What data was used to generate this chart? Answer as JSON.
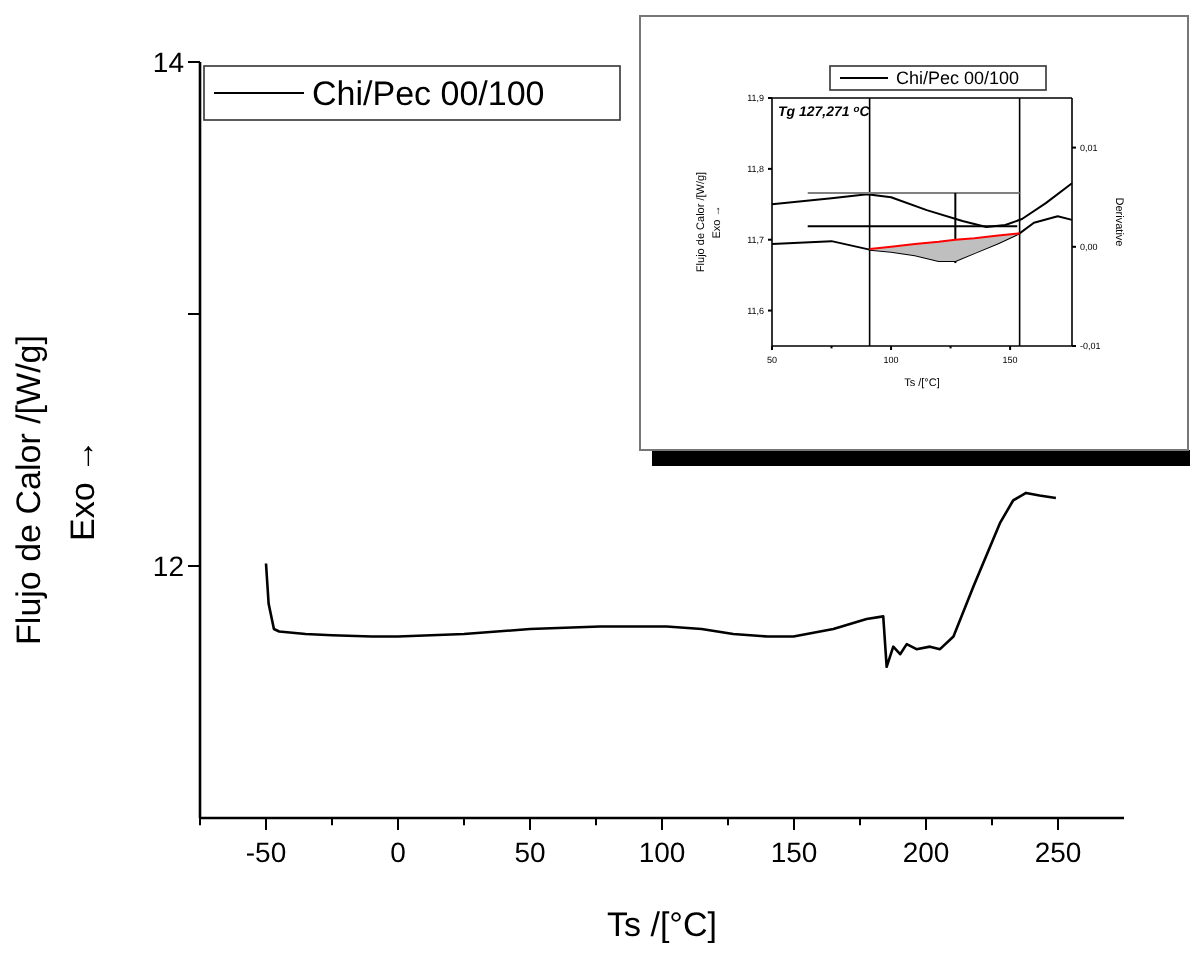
{
  "chart_data": [
    {
      "type": "line",
      "xlabel": "Ts /[°C]",
      "ylabel": "Flujo de Calor /[W/g]\nExo →",
      "xlim": [
        -75,
        275
      ],
      "ylim": [
        11,
        14
      ],
      "xticks": [
        {
          "value": -75,
          "label": null
        },
        -50,
        {
          "value": -25,
          "label": null
        },
        0,
        {
          "value": 25,
          "label": null
        },
        50,
        {
          "value": 75,
          "label": null
        },
        100,
        {
          "value": 125,
          "label": null
        },
        150,
        {
          "value": 175,
          "label": null
        },
        200,
        {
          "value": 225,
          "label": null
        },
        250
      ],
      "yticks": [
        12,
        {
          "value": 13,
          "label": null
        },
        14
      ],
      "grid": false,
      "legend": "top left",
      "marker": "none",
      "series": [
        {
          "name": "Chi/Pec 00/100",
          "color": "#000000",
          "x": [
            -50,
            -49,
            -47,
            -45,
            -35,
            -25,
            -10,
            0,
            25,
            50,
            76.5,
            90,
            101.8,
            115,
            127,
            140,
            149.8,
            164.9,
            177.5,
            183.8,
            185.1,
            187.6,
            190.2,
            192.7,
            196.4,
            201.5,
            205.3,
            210.4,
            218,
            228,
            233,
            237.9,
            243,
            249.2
          ],
          "values": [
            12.01,
            11.85,
            11.75,
            11.74,
            11.73,
            11.725,
            11.72,
            11.72,
            11.73,
            11.75,
            11.76,
            11.76,
            11.76,
            11.75,
            11.73,
            11.72,
            11.72,
            11.75,
            11.79,
            11.8,
            11.6,
            11.68,
            11.65,
            11.69,
            11.67,
            11.68,
            11.67,
            11.72,
            11.92,
            12.17,
            12.26,
            12.29,
            12.28,
            12.27
          ]
        }
      ]
    },
    {
      "type": "line",
      "xlabel": "Ts /[°C]",
      "ylabel": "Flujo de Calor /[W/g]\nExo →",
      "y2label": "Derivative",
      "xlim": [
        50,
        176
      ],
      "ylim": [
        11.55,
        11.9
      ],
      "y2lim": [
        -0.01,
        0.015
      ],
      "xticks": [
        50,
        {
          "value": 75,
          "label": null
        },
        100,
        {
          "value": 125,
          "label": null
        },
        150
      ],
      "yticks": [
        {
          "value": 11.6,
          "label": "11,6"
        },
        {
          "value": 11.7,
          "label": "11,7"
        },
        {
          "value": 11.8,
          "label": "11,8"
        },
        {
          "value": 11.9,
          "label": "11,9"
        }
      ],
      "y2ticks": [
        {
          "value": -0.01,
          "label": "-0,01"
        },
        {
          "value": 0,
          "label": "0,00"
        },
        {
          "value": 0.01,
          "label": "0,01"
        }
      ],
      "grid": false,
      "legend": "top",
      "marker": "none",
      "annotations": [
        "Tg 127,271 $^{o}$C"
      ],
      "ref_lines": [
        {
          "axis": "x",
          "value": 91
        },
        {
          "axis": "x",
          "value": 154
        }
      ],
      "series": [
        {
          "name": "Chi/Pec 00/100",
          "color": "#000000",
          "x": [
            50,
            75,
            91,
            100,
            110,
            120,
            127,
            135,
            145,
            154,
            160,
            170,
            176
          ],
          "values": [
            11.694,
            11.698,
            11.686,
            11.683,
            11.678,
            11.67,
            11.67,
            11.681,
            11.695,
            11.709,
            11.724,
            11.733,
            11.728
          ]
        },
        {
          "color": "#000000",
          "axis": "y2",
          "x": [
            50,
            75,
            90,
            100,
            115,
            130,
            140,
            148,
            155,
            165,
            176
          ],
          "values": [
            0.0043,
            0.0049,
            0.0053,
            0.005,
            0.0037,
            0.0026,
            0.002,
            0.0022,
            0.0028,
            0.0044,
            0.0064
          ]
        },
        {
          "color": "#808080",
          "x": [
            65,
            154
          ],
          "values": [
            11.766,
            11.766
          ]
        },
        {
          "color": "#000000",
          "x": [
            65,
            153
          ],
          "values": [
            11.719,
            11.719
          ]
        },
        {
          "color": "#000000",
          "x": [
            127,
            127
          ],
          "values": [
            11.766,
            11.667
          ]
        },
        {
          "color": "#ff0000",
          "x": [
            91,
            100,
            110,
            120,
            127,
            135,
            145,
            154
          ],
          "values": [
            11.687,
            11.69,
            11.694,
            11.697,
            11.7,
            11.702,
            11.706,
            11.709
          ],
          "lower": [
            11.686,
            11.683,
            11.678,
            11.67,
            11.67,
            11.681,
            11.695,
            11.709
          ],
          "upper": [
            11.687,
            11.69,
            11.694,
            11.697,
            11.7,
            11.702,
            11.706,
            11.709
          ]
        }
      ]
    }
  ]
}
